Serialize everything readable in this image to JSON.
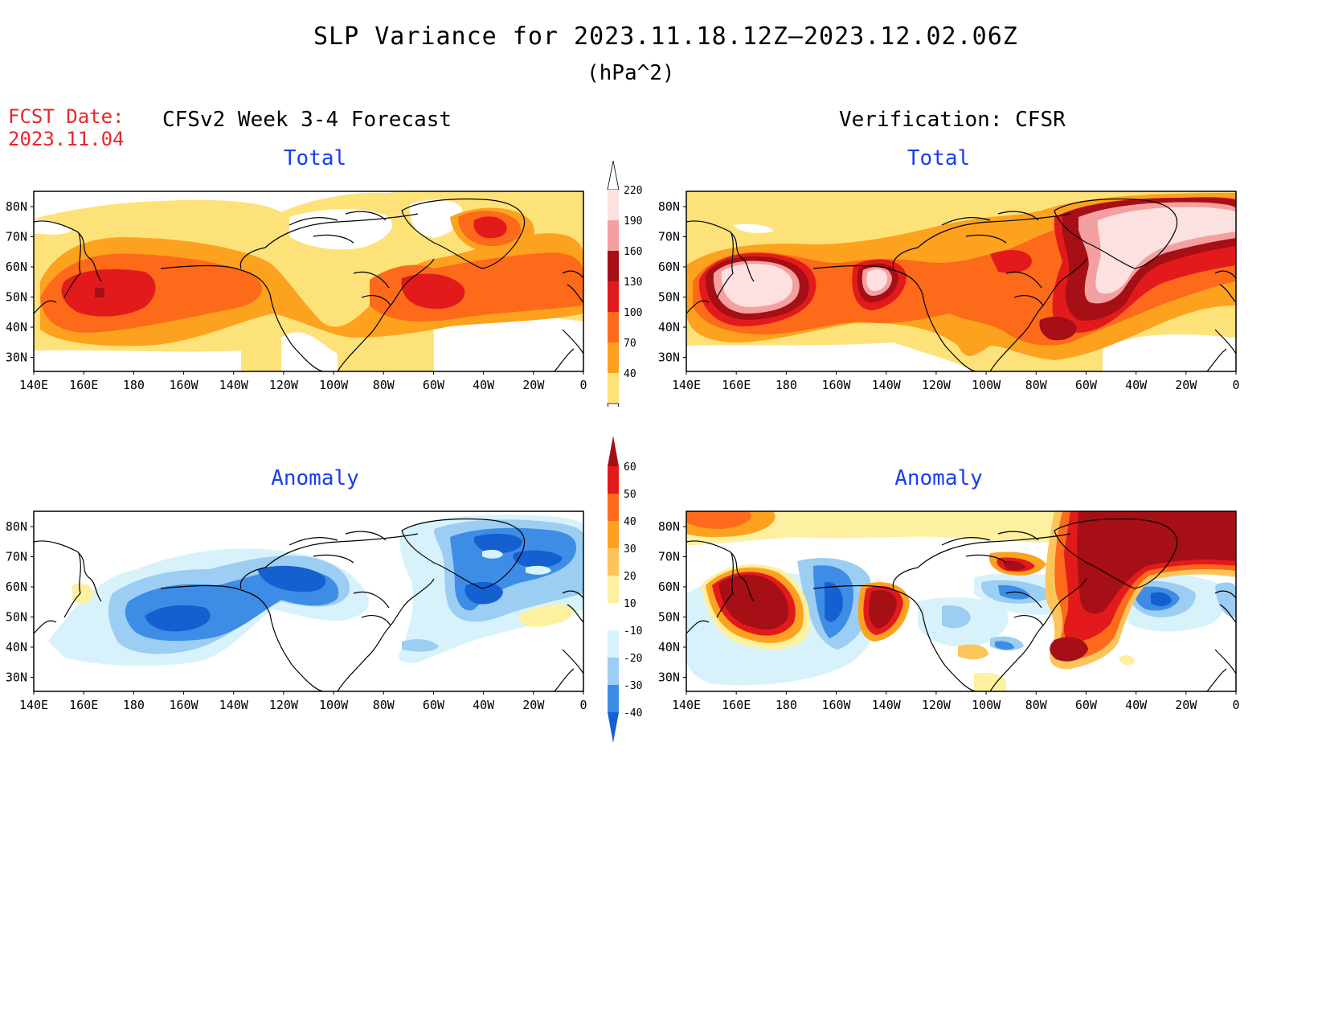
{
  "header": {
    "title": "SLP Variance for 2023.11.18.12Z—2023.12.02.06Z",
    "units": "(hPa^2)",
    "fcst_label": "FCST Date:",
    "fcst_date": "2023.11.04",
    "left_heading": "CFSv2 Week 3-4 Forecast",
    "right_heading": "Verification: CFSR"
  },
  "panels": {
    "fc_total_title": "Total",
    "obs_total_title": "Total",
    "fc_anom_title": "Anomaly",
    "obs_anom_title": "Anomaly"
  },
  "axes": {
    "lat_labels": [
      "80N",
      "70N",
      "60N",
      "50N",
      "40N",
      "30N"
    ],
    "lon_labels": [
      "140E",
      "160E",
      "180",
      "160W",
      "140W",
      "120W",
      "100W",
      "80W",
      "60W",
      "40W",
      "20W",
      "0"
    ]
  },
  "colorbar_total": {
    "levels": [
      "220",
      "190",
      "160",
      "130",
      "100",
      "70",
      "40"
    ],
    "colors": [
      "#fde0e0",
      "#f4a0a0",
      "#a50f15",
      "#e31a1c",
      "#fc6a1a",
      "#fda21e",
      "#fde27a"
    ]
  },
  "colorbar_anomaly": {
    "levels": [
      "60",
      "50",
      "40",
      "30",
      "20",
      "10",
      "-10",
      "-20",
      "-30",
      "-40"
    ],
    "colors": [
      "#a50f15",
      "#e31a1c",
      "#fc6a1a",
      "#fda21e",
      "#fdc45a",
      "#fdf0a0",
      "#ffffff",
      "#d8f2fb",
      "#9ccdf2",
      "#3d8de6",
      "#1560d0"
    ]
  },
  "map_colors": {
    "land": "#000000",
    "frame": "#000000"
  }
}
